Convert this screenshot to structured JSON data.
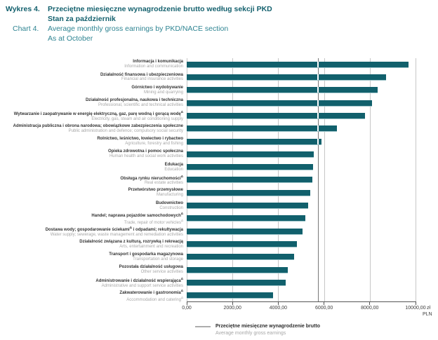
{
  "header": {
    "label_pl": "Wykres 4.",
    "label_en": "Chart 4.",
    "title_pl": [
      "Przeciętne miesięczne wynagrodzenie brutto według sekcji PKD",
      "Stan za październik"
    ],
    "title_en": [
      "Average monthly gross earnings by PKD/NACE section",
      "As at October"
    ]
  },
  "chart_data": {
    "type": "bar",
    "orientation": "horizontal",
    "title_pl": "Przeciętne miesięczne wynagrodzenie brutto według sekcji PKD. Stan za październik",
    "title_en": "Average monthly gross earnings by PKD/NACE section. As at October",
    "xlim": [
      0,
      10000
    ],
    "x_tick_values": [
      0,
      2000,
      4000,
      6000,
      8000,
      10000
    ],
    "x_tick_labels": [
      "0,00",
      "2000,00",
      "4000,00",
      "6000,00",
      "8000,00",
      "10000,00"
    ],
    "unit_primary": "zł",
    "unit_secondary": "PLN",
    "grid": true,
    "legend_position": "bottom",
    "reference_line": {
      "value": 5748,
      "label_pl": "Przeciętne miesięczne wynagrodzenie brutto",
      "label_en": "Average monthly gross earnings"
    },
    "categories": [
      {
        "pl": "Informacja i komunikacja",
        "en": "Information and communication",
        "value": 9680
      },
      {
        "pl": "Działalność finansowa i ubezpieczeniowa",
        "en": "Financial and insurance activities",
        "value": 8720
      },
      {
        "pl": "Górnictwo i wydobywanie",
        "en": "Mining and quarrying",
        "value": 8330
      },
      {
        "pl": "Działalność profesjonalna, naukowa i techniczna",
        "en": "Professional, scientific and technical activities",
        "value": 8090
      },
      {
        "pl": "Wytwarzanie i zaopatrywanie w energię elektryczną, gaz, parę wodną i gorącą wodęΔ",
        "en": "Electricity, gas, steam and air conditioning supply",
        "value": 7780
      },
      {
        "pl": "Administracja publiczna i obrona narodowa; obowiązkowe zabezpieczenia społeczne",
        "en": "Public administration and defence; compulsory social security",
        "value": 6550
      },
      {
        "pl": "Rolnictwo, leśnictwo, łowiectwo i rybactwo",
        "en": "Agriculture, forestry and fishing",
        "value": 5880
      },
      {
        "pl": "Opieka zdrowotna i pomoc społeczna",
        "en": "Human health and social work activities",
        "value": 5560
      },
      {
        "pl": "Edukacja",
        "en": "Education",
        "value": 5520
      },
      {
        "pl": "Obsługa rynku nieruchomościΔ",
        "en": "Real estate activities",
        "value": 5480
      },
      {
        "pl": "Przetwórstwo przemysłowe",
        "en": "Manufacturing",
        "value": 5400
      },
      {
        "pl": "Budownictwo",
        "en": "Construction",
        "value": 5300
      },
      {
        "pl": "Handel; naprawa pojazdów samochodowychΔ",
        "en": "Trade, repair of motor vehiclesΔ",
        "value": 5170
      },
      {
        "pl": "Dostawa wody; gospodarowanie ściekamiΔ i odpadami; rekultywacja",
        "en": "Water supply; sewerage, waste management and remediation activities",
        "value": 5050
      },
      {
        "pl": "Działalność związana z kulturą, rozrywką i rekreacją",
        "en": "Arts, entertainment and recreation",
        "value": 4810
      },
      {
        "pl": "Transport i gospodarka magazynowa",
        "en": "Transportation and storage",
        "value": 4690
      },
      {
        "pl": "Pozostała działalność usługowa",
        "en": "Other service activities",
        "value": 4420
      },
      {
        "pl": "Administrowanie i działalność wspierającaΔ",
        "en": "Administrative and support service activities",
        "value": 4330
      },
      {
        "pl": "Zakwaterowanie i gastronomiaΔ",
        "en": "Accommodation and cateringΔ",
        "value": 3760
      }
    ]
  },
  "legend": {
    "label_pl": "Przeciętne miesięczne wynagrodzenie brutto",
    "label_en": "Average monthly gross earnings"
  },
  "colors": {
    "bar": "#11606c",
    "header_dark": "#14616e",
    "header_light": "#2e8492",
    "gridline": "#c6c6c6",
    "reference_line": "#787878",
    "axis": "#555555",
    "label_pl": "#333333",
    "label_en": "#a6a6a6"
  }
}
